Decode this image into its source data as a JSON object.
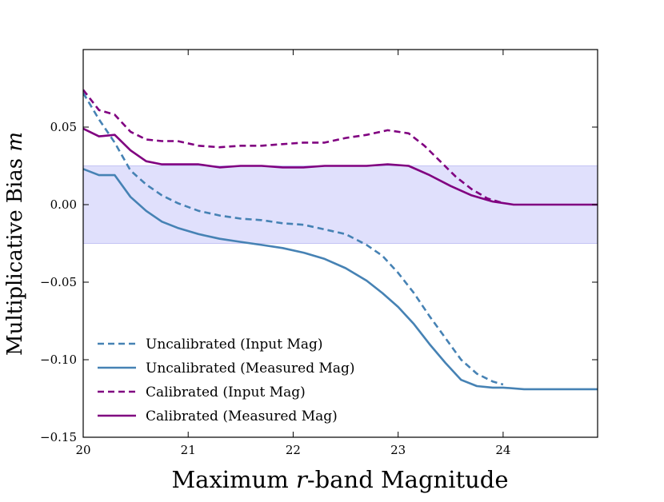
{
  "chart_data": {
    "type": "line",
    "title": "",
    "xlabel": "Maximum r-band Magnitude",
    "xlabel_parts": {
      "prefix": "Maximum ",
      "var": "r",
      "suffix": "-band Magnitude"
    },
    "ylabel": "Multiplicative Bias m",
    "ylabel_parts": {
      "prefix": "Multiplicative Bias ",
      "var": "m"
    },
    "xlim": [
      20,
      24.9
    ],
    "ylim": [
      -0.15,
      0.1
    ],
    "x_ticks": [
      20,
      21,
      22,
      23,
      24
    ],
    "x_tick_labels": [
      "20",
      "21",
      "22",
      "23",
      "24"
    ],
    "y_ticks": [
      -0.15,
      -0.1,
      -0.05,
      0.0,
      0.05
    ],
    "y_tick_labels": [
      "−0.15",
      "−0.10",
      "−0.05",
      "0.00",
      "0.05"
    ],
    "band": {
      "y_min": -0.025,
      "y_max": 0.025,
      "color": "#e0e0fc"
    },
    "legend_position": "lower-left",
    "series": [
      {
        "name": "Uncalibrated (Input Mag)",
        "color": "#4682b4",
        "style": "dashed",
        "x": [
          20.0,
          20.15,
          20.3,
          20.45,
          20.6,
          20.75,
          20.9,
          21.1,
          21.3,
          21.5,
          21.7,
          21.9,
          22.1,
          22.3,
          22.5,
          22.7,
          22.85,
          23.0,
          23.15,
          23.3,
          23.45,
          23.6,
          23.75,
          23.9,
          24.0
        ],
        "y": [
          0.072,
          0.055,
          0.04,
          0.022,
          0.013,
          0.006,
          0.001,
          -0.004,
          -0.007,
          -0.009,
          -0.01,
          -0.012,
          -0.013,
          -0.016,
          -0.019,
          -0.026,
          -0.033,
          -0.044,
          -0.057,
          -0.072,
          -0.086,
          -0.1,
          -0.109,
          -0.114,
          -0.116
        ]
      },
      {
        "name": "Uncalibrated (Measured Mag)",
        "color": "#4682b4",
        "style": "solid",
        "x": [
          20.0,
          20.15,
          20.3,
          20.45,
          20.6,
          20.75,
          20.9,
          21.1,
          21.3,
          21.5,
          21.7,
          21.9,
          22.1,
          22.3,
          22.5,
          22.7,
          22.85,
          23.0,
          23.15,
          23.3,
          23.45,
          23.6,
          23.75,
          23.9,
          24.0,
          24.2,
          24.5,
          24.9
        ],
        "y": [
          0.023,
          0.019,
          0.019,
          0.005,
          -0.004,
          -0.011,
          -0.015,
          -0.019,
          -0.022,
          -0.024,
          -0.026,
          -0.028,
          -0.031,
          -0.035,
          -0.041,
          -0.049,
          -0.057,
          -0.066,
          -0.077,
          -0.09,
          -0.102,
          -0.113,
          -0.117,
          -0.118,
          -0.118,
          -0.119,
          -0.119,
          -0.119
        ]
      },
      {
        "name": "Calibrated (Input Mag)",
        "color": "#800080",
        "style": "dashed",
        "x": [
          20.0,
          20.15,
          20.3,
          20.45,
          20.6,
          20.75,
          20.9,
          21.1,
          21.3,
          21.5,
          21.7,
          21.9,
          22.1,
          22.3,
          22.5,
          22.7,
          22.9,
          23.1,
          23.25,
          23.4,
          23.55,
          23.7,
          23.85,
          24.0
        ],
        "y": [
          0.074,
          0.061,
          0.058,
          0.047,
          0.042,
          0.041,
          0.041,
          0.038,
          0.037,
          0.038,
          0.038,
          0.039,
          0.04,
          0.04,
          0.043,
          0.045,
          0.048,
          0.046,
          0.038,
          0.028,
          0.018,
          0.01,
          0.004,
          0.001
        ]
      },
      {
        "name": "Calibrated (Measured Mag)",
        "color": "#800080",
        "style": "solid",
        "x": [
          20.0,
          20.15,
          20.3,
          20.45,
          20.6,
          20.75,
          20.9,
          21.1,
          21.3,
          21.5,
          21.7,
          21.9,
          22.1,
          22.3,
          22.5,
          22.7,
          22.9,
          23.1,
          23.3,
          23.5,
          23.7,
          23.9,
          24.1,
          24.3,
          24.6,
          24.9
        ],
        "y": [
          0.049,
          0.044,
          0.045,
          0.035,
          0.028,
          0.026,
          0.026,
          0.026,
          0.024,
          0.025,
          0.025,
          0.024,
          0.024,
          0.025,
          0.025,
          0.025,
          0.026,
          0.025,
          0.019,
          0.012,
          0.006,
          0.002,
          0.0,
          0.0,
          0.0,
          0.0
        ]
      }
    ]
  }
}
